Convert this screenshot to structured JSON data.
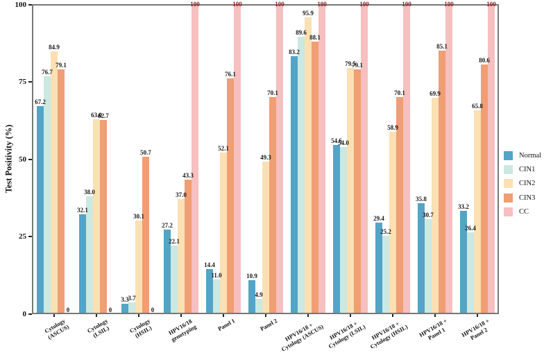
{
  "chart_data": {
    "type": "bar",
    "title": "",
    "xlabel": "",
    "ylabel": "Test Positivity (%)",
    "ylim": [
      0,
      100
    ],
    "yticks": [
      0,
      25,
      50,
      75,
      100
    ],
    "grid": false,
    "legend_position": "right-outside",
    "categories": [
      "Cytology\n(ASCUS)",
      "Cytology\n(LSIL)",
      "Cytology\n(HSIL)",
      "HPV16/18\ngenotyping",
      "Panel 1",
      "Panel 2",
      "HPV16/18 +\nCytology (ASCUS)",
      "HPV16/18 +\nCytology (LSIL)",
      "HPV16/18 +\nCytology (HSIL)",
      "HPV16/18 +\nPanel 1",
      "HPV16/18 +\nPanel 2"
    ],
    "series": [
      {
        "name": "Normal",
        "color": "#53A4C6",
        "values": [
          67.2,
          32.1,
          3.3,
          27.2,
          14.4,
          10.9,
          83.2,
          54.6,
          29.4,
          35.8,
          33.2
        ]
      },
      {
        "name": "CIN1",
        "color": "#CBE8E1",
        "values": [
          76.7,
          38.0,
          3.7,
          22.1,
          11.0,
          4.9,
          89.6,
          54.0,
          25.2,
          30.7,
          26.4
        ]
      },
      {
        "name": "CIN2",
        "color": "#FAE0B3",
        "values": [
          84.9,
          63.0,
          30.1,
          37.0,
          52.1,
          49.3,
          95.9,
          79.5,
          58.9,
          69.9,
          65.8
        ]
      },
      {
        "name": "CIN3",
        "color": "#F09E73",
        "values": [
          79.1,
          62.7,
          50.7,
          43.3,
          76.1,
          70.1,
          88.1,
          79.1,
          70.1,
          85.1,
          80.6
        ]
      },
      {
        "name": "CC",
        "color": "#F6BFC0",
        "values": [
          0,
          0,
          0,
          100,
          100,
          100,
          100,
          100,
          100,
          100,
          100
        ]
      }
    ],
    "style": {
      "plot_border_color": "#777777",
      "value_label_color": "#1a1a1a",
      "value_label_100_color": "#8b2222",
      "background": "#ffffff"
    }
  }
}
